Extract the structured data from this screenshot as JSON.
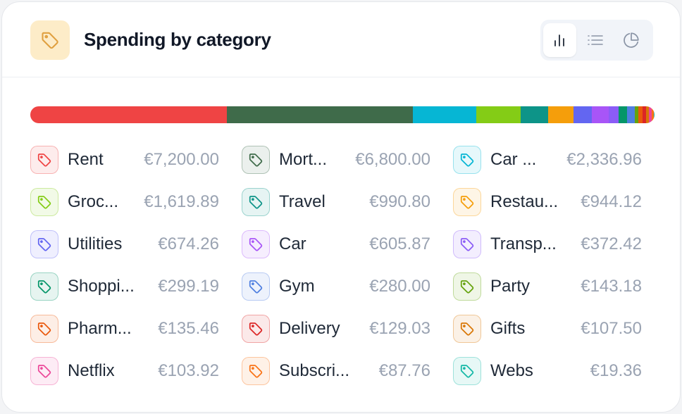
{
  "header": {
    "title": "Spending by category",
    "icon": "tag-icon",
    "accent": "#f0a030",
    "views": [
      {
        "name": "bar-chart-icon",
        "active": true
      },
      {
        "name": "list-icon",
        "active": false
      },
      {
        "name": "pie-chart-icon",
        "active": false
      }
    ]
  },
  "categories": [
    {
      "name": "Rent",
      "amount": "€7,200.00",
      "value": 7200.0,
      "color": "#ef4444"
    },
    {
      "name": "Mort...",
      "amount": "€6,800.00",
      "value": 6800.0,
      "color": "#3f6b4a"
    },
    {
      "name": "Car ...",
      "amount": "€2,336.96",
      "value": 2336.96,
      "color": "#06b6d4"
    },
    {
      "name": "Groc...",
      "amount": "€1,619.89",
      "value": 1619.89,
      "color": "#84cc16"
    },
    {
      "name": "Travel",
      "amount": "€990.80",
      "value": 990.8,
      "color": "#0d9488"
    },
    {
      "name": "Restau...",
      "amount": "€944.12",
      "value": 944.12,
      "color": "#f59e0b"
    },
    {
      "name": "Utilities",
      "amount": "€674.26",
      "value": 674.26,
      "color": "#6366f1"
    },
    {
      "name": "Car",
      "amount": "€605.87",
      "value": 605.87,
      "color": "#a855f7"
    },
    {
      "name": "Transp...",
      "amount": "€372.42",
      "value": 372.42,
      "color": "#8b5cf6"
    },
    {
      "name": "Shoppi...",
      "amount": "€299.19",
      "value": 299.19,
      "color": "#059669"
    },
    {
      "name": "Gym",
      "amount": "€280.00",
      "value": 280.0,
      "color": "#4f7fe0"
    },
    {
      "name": "Party",
      "amount": "€143.18",
      "value": 143.18,
      "color": "#65a30d"
    },
    {
      "name": "Pharm...",
      "amount": "€135.46",
      "value": 135.46,
      "color": "#ea580c"
    },
    {
      "name": "Delivery",
      "amount": "€129.03",
      "value": 129.03,
      "color": "#dc2626"
    },
    {
      "name": "Gifts",
      "amount": "€107.50",
      "value": 107.5,
      "color": "#d97706"
    },
    {
      "name": "Netflix",
      "amount": "€103.92",
      "value": 103.92,
      "color": "#ec4899"
    },
    {
      "name": "Subscri...",
      "amount": "€87.76",
      "value": 87.76,
      "color": "#f97316"
    },
    {
      "name": "Webs",
      "amount": "€19.36",
      "value": 19.36,
      "color": "#14b8a6"
    }
  ]
}
